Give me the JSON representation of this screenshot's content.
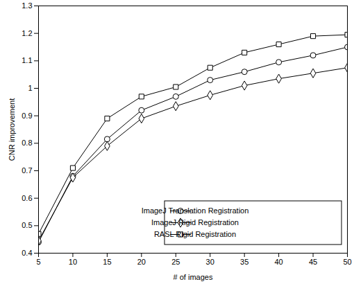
{
  "chart_data": {
    "type": "line",
    "x_label": "# of images",
    "y_label": "CNR improvement",
    "x": [
      5,
      10,
      15,
      20,
      25,
      30,
      35,
      40,
      45,
      50
    ],
    "xlim": [
      5,
      50
    ],
    "xticks": [
      5,
      10,
      15,
      20,
      25,
      30,
      35,
      40,
      45,
      50
    ],
    "ylim": [
      0.4,
      1.3
    ],
    "yticks": [
      0.4,
      0.5,
      0.6,
      0.7,
      0.8,
      0.9,
      1,
      1.1,
      1.2,
      1.3
    ],
    "legend": "lower right",
    "grid": false,
    "series": [
      {
        "name": "ImageJ Translation Registration",
        "color": "#000000",
        "marker": "circle",
        "values": [
          0.44,
          0.68,
          0.815,
          0.92,
          0.97,
          1.03,
          1.06,
          1.095,
          1.12,
          1.15
        ]
      },
      {
        "name": "ImageJ Rigid Registration",
        "color": "#000000",
        "marker": "diamond",
        "values": [
          0.445,
          0.675,
          0.79,
          0.89,
          0.935,
          0.975,
          1.01,
          1.035,
          1.055,
          1.075
        ]
      },
      {
        "name": "RASL Rigid Registration",
        "color": "#000000",
        "marker": "square",
        "values": [
          0.47,
          0.71,
          0.89,
          0.97,
          1.005,
          1.075,
          1.13,
          1.16,
          1.19,
          1.195
        ]
      }
    ]
  }
}
